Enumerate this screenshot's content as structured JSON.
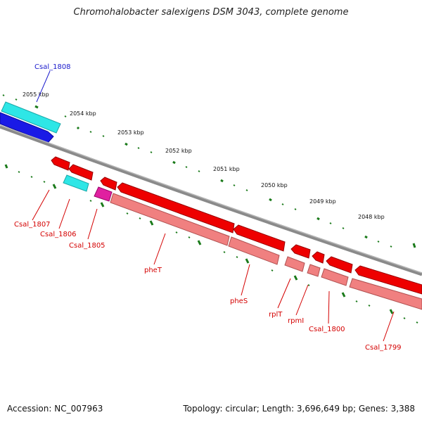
{
  "title": "Chromohalobacter salexigens DSM 3043, complete genome",
  "footer": {
    "accession": "Accession: NC_007963",
    "stats": "Topology: circular; Length: 3,696,649 bp; Genes: 3,388"
  },
  "colors": {
    "backbone": "#8a8a8a",
    "tick": "#1a7a1a",
    "gene_red": "#ee0000",
    "cds_pink": "#f08080",
    "trna_cyan": "#2ee6e6",
    "blue_gene": "#1a1ae6",
    "magenta": "#e020a0",
    "label_red": "#d40000",
    "label_blue": "#1a1acc"
  },
  "kbp_labels": [
    "2055 kbp",
    "2054 kbp",
    "2053 kbp",
    "2052 kbp",
    "2051 kbp",
    "2050 kbp",
    "2049 kbp",
    "2048 kbp"
  ],
  "gene_labels": {
    "csal1808": "Csal_1808",
    "csal1807": "Csal_1807",
    "csal1806": "Csal_1806",
    "csal1805": "Csal_1805",
    "phet": "pheT",
    "phes": "pheS",
    "rplt": "rplT",
    "rpmi": "rpmI",
    "csal1800": "Csal_1800",
    "csal1799": "Csal_1799"
  }
}
